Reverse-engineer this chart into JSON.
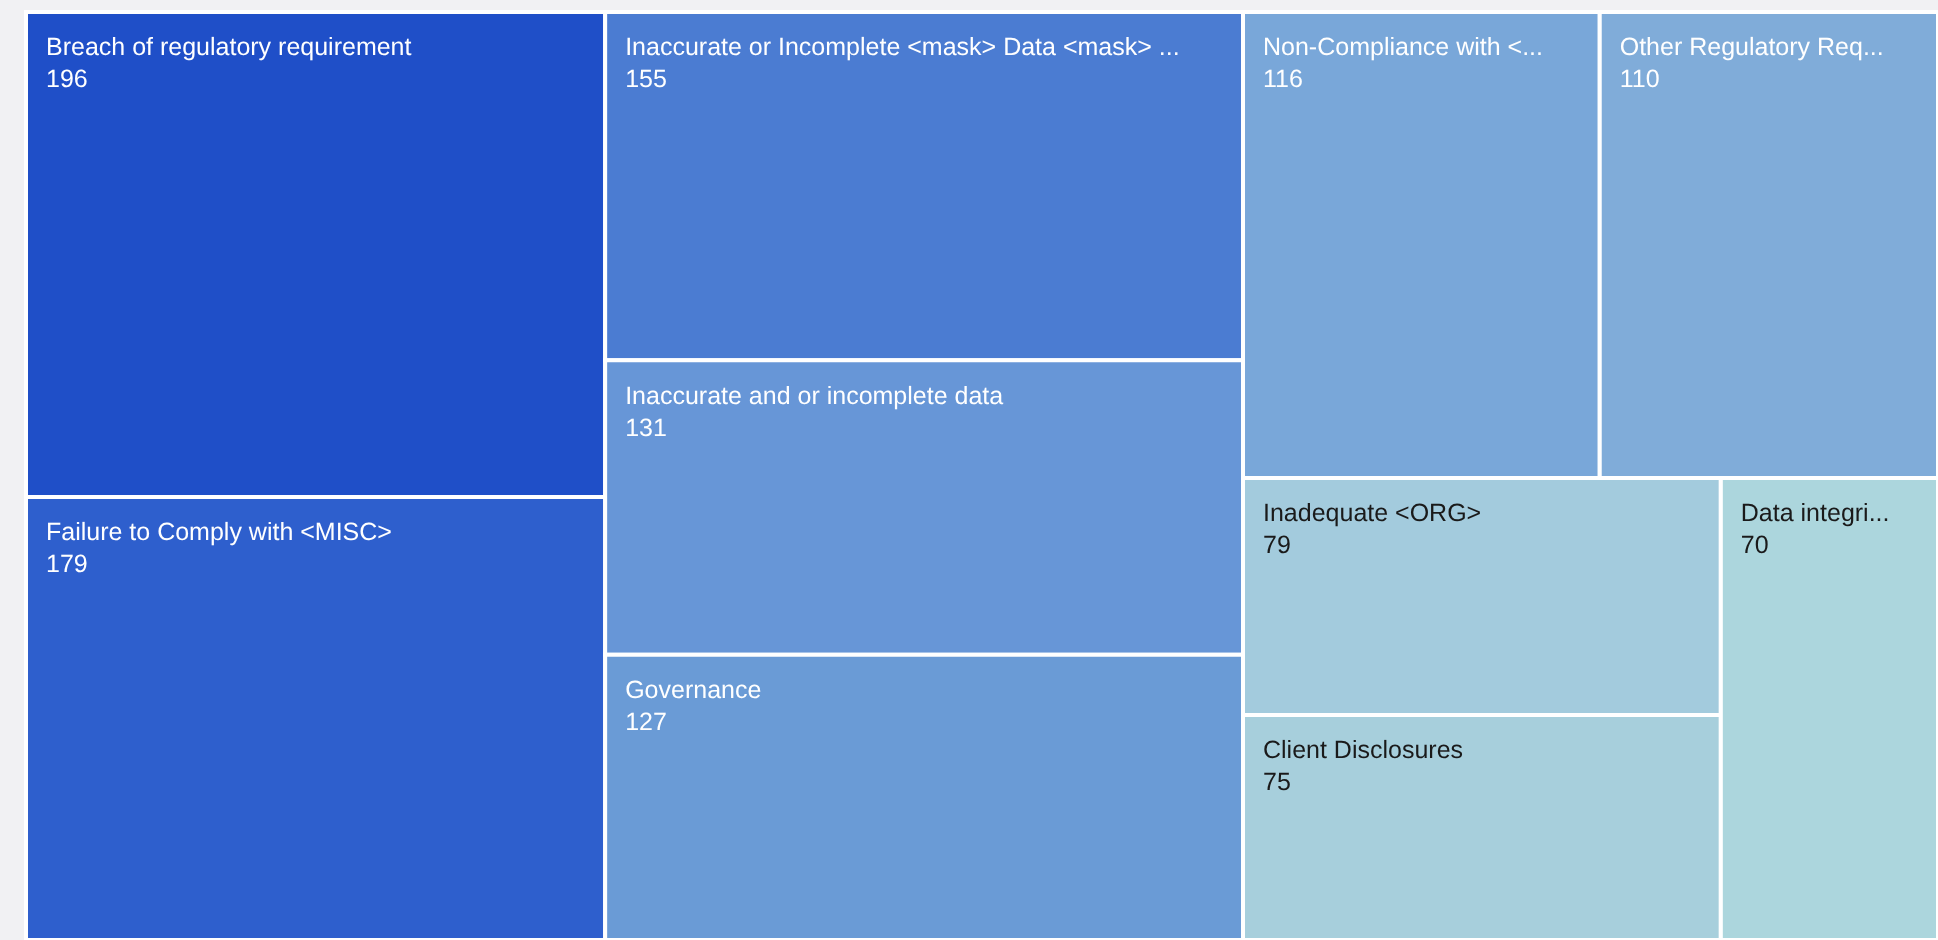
{
  "chart_data": {
    "type": "other",
    "categories": [
      "Breach of regulatory requirement",
      "Failure to Comply with <MISC>",
      "Inaccurate or Incomplete <mask> Data <mask> ...",
      "Inaccurate and or incomplete data",
      "Governance",
      "Non-Compliance with <...",
      "Other Regulatory Req...",
      "Inadequate <ORG>",
      "Client Disclosures",
      "Data integri..."
    ],
    "values": [
      196,
      179,
      155,
      131,
      127,
      116,
      110,
      79,
      75,
      70
    ],
    "colors": [
      "#1f4fc8",
      "#2e5fcd",
      "#4b7cd2",
      "#6796d7",
      "#6a9bd6",
      "#79a7d9",
      "#80acd9",
      "#a3cbdd",
      "#a7cfdc",
      "#acd6dd"
    ],
    "data_labels": true
  }
}
